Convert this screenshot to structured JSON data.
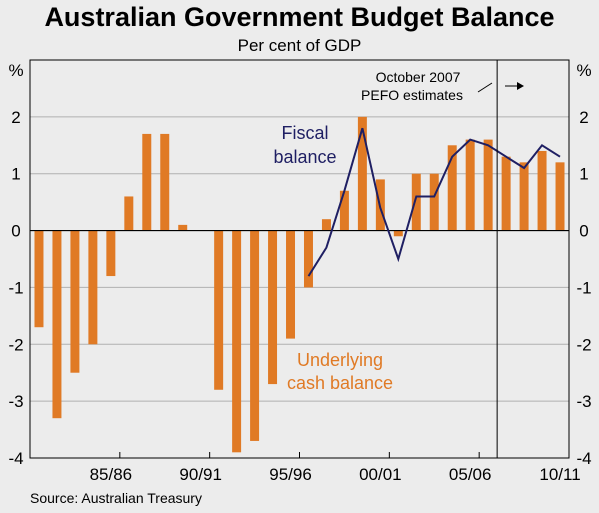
{
  "chart_data": {
    "type": "bar",
    "title": "Australian Government Budget Balance",
    "subtitle": "Per cent of GDP",
    "ylabel_left": "%",
    "ylabel_right": "%",
    "ylim": [
      -4,
      3
    ],
    "yticks": [
      -4,
      -3,
      -2,
      -1,
      0,
      1,
      2
    ],
    "x": [
      "1981/82",
      "1982/83",
      "1983/84",
      "1984/85",
      "1985/86",
      "1986/87",
      "1987/88",
      "1988/89",
      "1989/90",
      "1990/91",
      "1991/92",
      "1992/93",
      "1993/94",
      "1994/95",
      "1995/96",
      "1996/97",
      "1997/98",
      "1998/99",
      "1999/00",
      "2000/01",
      "2001/02",
      "2002/03",
      "2003/04",
      "2004/05",
      "2005/06",
      "2006/07",
      "2007/08",
      "2008/09",
      "2009/10",
      "2010/11"
    ],
    "xtick_labels": [
      {
        "after": "1985/86",
        "label": "85/86"
      },
      {
        "after": "1990/91",
        "label": "90/91"
      },
      {
        "after": "1995/96",
        "label": "95/96"
      },
      {
        "after": "2000/01",
        "label": "00/01"
      },
      {
        "after": "2005/06",
        "label": "05/06"
      },
      {
        "after": "2010/11",
        "label": "10/11"
      }
    ],
    "series": [
      {
        "name": "Underlying cash balance",
        "kind": "bar",
        "color": "#e07a25",
        "values": [
          -1.7,
          -3.3,
          -2.5,
          -2.0,
          -0.8,
          0.6,
          1.7,
          1.7,
          0.1,
          0.0,
          -2.8,
          -3.9,
          -3.7,
          -2.7,
          -1.9,
          -1.0,
          0.2,
          0.7,
          2.0,
          0.9,
          -0.1,
          1.0,
          1.0,
          1.5,
          1.6,
          1.6,
          1.3,
          1.2,
          1.4,
          1.2
        ]
      },
      {
        "name": "Fiscal balance",
        "kind": "line",
        "color": "#1f1f63",
        "values": [
          null,
          null,
          null,
          null,
          null,
          null,
          null,
          null,
          null,
          null,
          null,
          null,
          null,
          null,
          null,
          -0.8,
          -0.3,
          0.7,
          1.8,
          0.4,
          -0.5,
          0.6,
          0.6,
          1.3,
          1.6,
          1.5,
          1.3,
          1.1,
          1.5,
          1.3
        ]
      }
    ],
    "series_labels": [
      {
        "series": 0,
        "lines": [
          "Underlying",
          "cash balance"
        ]
      },
      {
        "series": 1,
        "lines": [
          "Fiscal",
          "balance"
        ]
      }
    ],
    "forecast_divider": {
      "after": "2006/07"
    },
    "annotation": {
      "lines": [
        "October 2007",
        "PEFO estimates"
      ]
    },
    "grid": "horizontal",
    "source": "Source: Australian Treasury"
  }
}
